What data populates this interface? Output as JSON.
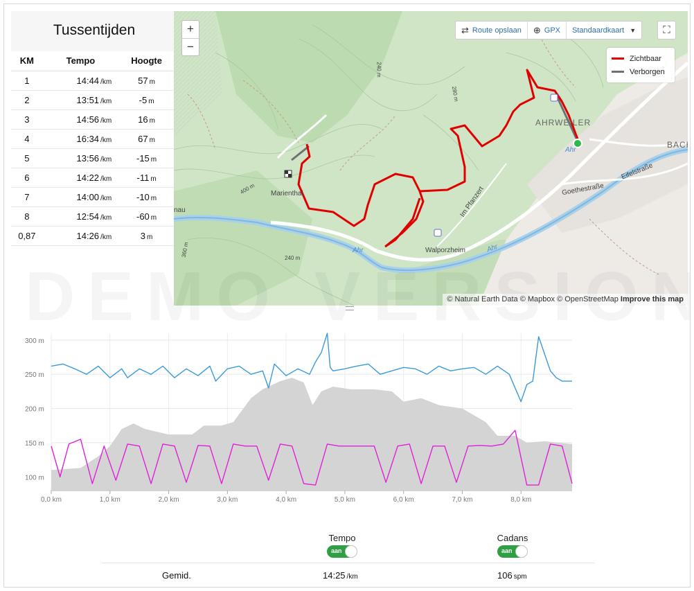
{
  "splits": {
    "title": "Tussentijden",
    "columns": [
      "KM",
      "Tempo",
      "Hoogte"
    ],
    "rows": [
      {
        "km": "1",
        "tempo": "14:44",
        "tempo_unit": "/km",
        "hoogte": "57",
        "hoogte_unit": "m"
      },
      {
        "km": "2",
        "tempo": "13:51",
        "tempo_unit": "/km",
        "hoogte": "-5",
        "hoogte_unit": "m"
      },
      {
        "km": "3",
        "tempo": "14:56",
        "tempo_unit": "/km",
        "hoogte": "16",
        "hoogte_unit": "m"
      },
      {
        "km": "4",
        "tempo": "16:34",
        "tempo_unit": "/km",
        "hoogte": "67",
        "hoogte_unit": "m"
      },
      {
        "km": "5",
        "tempo": "13:56",
        "tempo_unit": "/km",
        "hoogte": "-15",
        "hoogte_unit": "m"
      },
      {
        "km": "6",
        "tempo": "14:22",
        "tempo_unit": "/km",
        "hoogte": "-11",
        "hoogte_unit": "m"
      },
      {
        "km": "7",
        "tempo": "14:00",
        "tempo_unit": "/km",
        "hoogte": "-10",
        "hoogte_unit": "m"
      },
      {
        "km": "8",
        "tempo": "12:54",
        "tempo_unit": "/km",
        "hoogte": "-60",
        "hoogte_unit": "m"
      },
      {
        "km": "0,87",
        "tempo": "14:26",
        "tempo_unit": "/km",
        "hoogte": "3",
        "hoogte_unit": "m"
      }
    ]
  },
  "map": {
    "zoom_in": "+",
    "zoom_out": "−",
    "toolbar": {
      "save_route": "Route opslaan",
      "gpx": "GPX",
      "map_style": "Standaardkaart"
    },
    "legend": {
      "visible": "Zichtbaar",
      "hidden": "Verborgen",
      "visible_color": "#e00000",
      "hidden_color": "#707070"
    },
    "labels": {
      "ahrweiler": "AHRWEILER",
      "marienthal": "Marienthal",
      "walporzheim": "Walporzheim",
      "im_pfanzert": "Im Pfanzert",
      "goethestrasse": "Goethestraße",
      "eifelstrasse": "Eifelstraße",
      "ahr1": "Ahr",
      "ahr2": "Ahr",
      "ahr3": "Ahr",
      "bach": "BACH",
      "nau": "nau",
      "c240a": "240 m",
      "c240b": "240 m",
      "c280": "280 m",
      "c400": "400 m",
      "c360": "360 m"
    },
    "attribution": {
      "text": "© Natural Earth Data © Mapbox © OpenStreetMap",
      "improve": "Improve this map"
    }
  },
  "watermark": "DEMO VERSION",
  "chart_data": {
    "type": "line",
    "xlabel": "",
    "ylabel": "",
    "x_ticks": [
      "0,0 km",
      "1,0 km",
      "2,0 km",
      "3,0 km",
      "4,0 km",
      "5,0 km",
      "6,0 km",
      "7,0 km",
      "8,0 km"
    ],
    "y_ticks": [
      "100 m",
      "150 m",
      "200 m",
      "250 m",
      "300 m"
    ],
    "xlim": [
      0,
      8.87
    ],
    "ylim": [
      80,
      310
    ],
    "grid": true,
    "series": [
      {
        "name": "Hoogte",
        "type": "area",
        "color": "#d4d4d4",
        "x": [
          0,
          0.5,
          0.8,
          1.0,
          1.2,
          1.4,
          1.6,
          2.0,
          2.4,
          2.6,
          2.9,
          3.1,
          3.4,
          3.6,
          3.9,
          4.1,
          4.3,
          4.45,
          4.6,
          4.8,
          5.1,
          5.5,
          5.8,
          6.0,
          6.3,
          6.6,
          7.0,
          7.4,
          7.6,
          7.9,
          8.1,
          8.4,
          8.87
        ],
        "y": [
          110,
          113,
          130,
          145,
          170,
          178,
          170,
          162,
          162,
          175,
          175,
          180,
          215,
          228,
          240,
          245,
          238,
          205,
          225,
          232,
          228,
          228,
          225,
          210,
          215,
          205,
          200,
          180,
          160,
          160,
          150,
          152,
          148
        ]
      },
      {
        "name": "Tempo",
        "type": "line",
        "color": "#3a9ad9",
        "x": [
          0,
          0.2,
          0.4,
          0.6,
          0.8,
          1.0,
          1.2,
          1.3,
          1.5,
          1.7,
          1.9,
          2.1,
          2.3,
          2.5,
          2.7,
          2.8,
          3.0,
          3.2,
          3.4,
          3.6,
          3.7,
          3.8,
          4.0,
          4.2,
          4.4,
          4.5,
          4.6,
          4.7,
          4.75,
          4.8,
          5.0,
          5.2,
          5.4,
          5.6,
          5.8,
          6.0,
          6.2,
          6.4,
          6.6,
          6.8,
          7.0,
          7.2,
          7.4,
          7.6,
          7.8,
          8.0,
          8.1,
          8.2,
          8.3,
          8.5,
          8.6,
          8.7,
          8.87
        ],
        "y": [
          262,
          265,
          258,
          250,
          262,
          245,
          258,
          245,
          258,
          250,
          262,
          245,
          258,
          248,
          262,
          240,
          258,
          262,
          250,
          255,
          230,
          265,
          248,
          258,
          250,
          268,
          282,
          310,
          260,
          255,
          258,
          262,
          265,
          250,
          255,
          260,
          258,
          250,
          262,
          255,
          258,
          260,
          250,
          262,
          250,
          210,
          235,
          240,
          305,
          255,
          245,
          240,
          240
        ]
      },
      {
        "name": "Cadans",
        "type": "line",
        "color": "#e020d8",
        "x": [
          0,
          0.15,
          0.3,
          0.5,
          0.7,
          0.9,
          1.1,
          1.3,
          1.5,
          1.7,
          1.9,
          2.1,
          2.3,
          2.5,
          2.7,
          2.9,
          3.1,
          3.3,
          3.5,
          3.7,
          3.9,
          4.1,
          4.3,
          4.5,
          4.7,
          4.9,
          5.1,
          5.3,
          5.5,
          5.7,
          5.9,
          6.1,
          6.3,
          6.5,
          6.7,
          6.9,
          7.1,
          7.3,
          7.5,
          7.7,
          7.9,
          8.1,
          8.3,
          8.5,
          8.7,
          8.87
        ],
        "y": [
          145,
          100,
          148,
          155,
          90,
          145,
          95,
          148,
          145,
          90,
          148,
          145,
          92,
          146,
          145,
          90,
          148,
          145,
          145,
          95,
          148,
          145,
          90,
          88,
          148,
          145,
          145,
          145,
          145,
          92,
          145,
          148,
          90,
          145,
          145,
          92,
          145,
          146,
          145,
          148,
          168,
          88,
          88,
          148,
          145,
          90
        ]
      }
    ]
  },
  "stats": {
    "tempo_label": "Tempo",
    "cadans_label": "Cadans",
    "toggle_on": "aan",
    "avg_label": "Gemid.",
    "avg_tempo": "14:25",
    "avg_tempo_unit": "/km",
    "avg_cadans": "106",
    "avg_cadans_unit": "spm"
  }
}
